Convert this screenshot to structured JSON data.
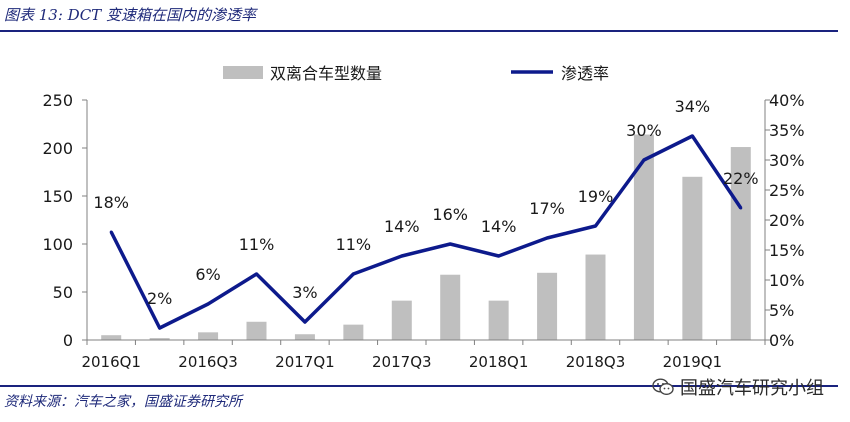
{
  "header": {
    "title": "图表 13:  DCT 变速箱在国内的渗透率"
  },
  "footer": {
    "source": "资料来源：汽车之家，国盛证券研究所"
  },
  "watermark": {
    "text": "国盛汽车研究小组",
    "icon": "wechat-icon"
  },
  "colors": {
    "bar": "#bfbfbf",
    "line": "#0d1a8c",
    "rule": "#1a237e",
    "text": "#1a1a1a"
  },
  "chart_data": {
    "type": "bar",
    "categories": [
      "2016Q1",
      "2016Q2",
      "2016Q3",
      "2016Q4",
      "2017Q1",
      "2017Q2",
      "2017Q3",
      "2017Q4",
      "2018Q1",
      "2018Q2",
      "2018Q3",
      "2018Q4",
      "2019Q1",
      "2019Q2"
    ],
    "x_tick_labels": [
      "2016Q1",
      "2016Q3",
      "2017Q1",
      "2017Q3",
      "2018Q1",
      "2018Q3",
      "2019Q1"
    ],
    "series": [
      {
        "name": "双离合车型数量",
        "type": "bar",
        "axis": "left",
        "values": [
          5,
          2,
          8,
          19,
          6,
          16,
          41,
          68,
          41,
          70,
          89,
          214,
          170,
          201
        ]
      },
      {
        "name": "渗透率",
        "type": "line",
        "axis": "right",
        "values": [
          18,
          2,
          6,
          11,
          3,
          11,
          14,
          16,
          14,
          17,
          19,
          30,
          34,
          22
        ],
        "labels": [
          "18%",
          "2%",
          "6%",
          "11%",
          "3%",
          "11%",
          "14%",
          "16%",
          "14%",
          "17%",
          "19%",
          "30%",
          "34%",
          "22%"
        ]
      }
    ],
    "y_left": {
      "ylim": [
        0,
        250
      ],
      "ticks": [
        "0",
        "50",
        "100",
        "150",
        "200",
        "250"
      ]
    },
    "y_right": {
      "ylim": [
        0,
        40
      ],
      "ticks": [
        "0%",
        "5%",
        "10%",
        "15%",
        "20%",
        "25%",
        "30%",
        "35%",
        "40%"
      ]
    },
    "legend": {
      "placement": "top-center"
    },
    "grid": false
  }
}
